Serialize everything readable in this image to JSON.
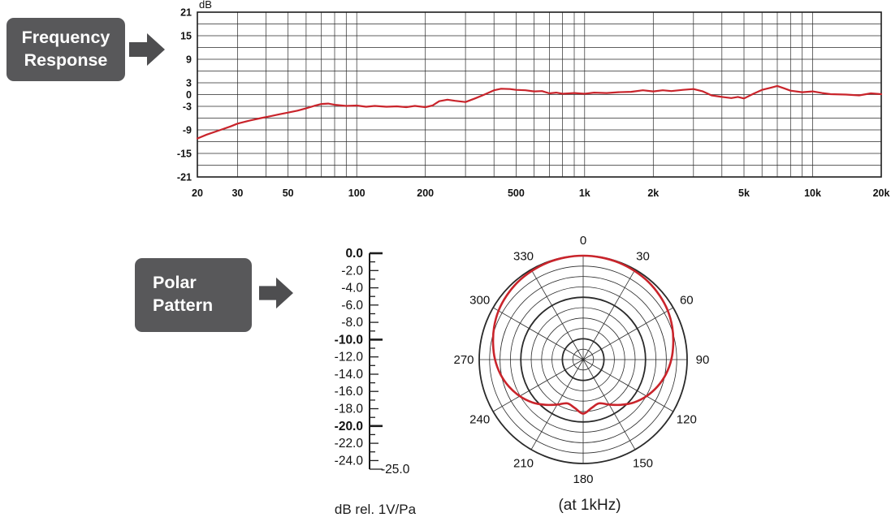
{
  "frequency_response": {
    "label_lines": [
      "Frequency",
      "Response"
    ],
    "box_color": "#58585a",
    "arrow_color": "#4e4e50"
  },
  "polar_pattern": {
    "label_lines": [
      "Polar",
      "Pattern"
    ],
    "box_color": "#58585a",
    "arrow_color": "#4e4e50",
    "scale_caption": "dB rel. 1V/Pa",
    "chart_caption": "(at 1kHz)"
  },
  "chart_data": [
    {
      "type": "line",
      "name": "frequency-response",
      "y_axis_label": "dB",
      "x_scale": "log",
      "x_range": [
        20,
        20000
      ],
      "y_range": [
        -21,
        21
      ],
      "y_grid_step_db": 3,
      "grid_color": "#2a2a2a",
      "line_color": "#c9242b",
      "x_gridlines": [
        20,
        30,
        40,
        50,
        60,
        70,
        80,
        90,
        100,
        200,
        300,
        400,
        500,
        600,
        700,
        800,
        900,
        1000,
        2000,
        3000,
        4000,
        5000,
        6000,
        7000,
        8000,
        9000,
        10000,
        20000
      ],
      "x_ticks": [
        {
          "value": 20,
          "label": "20"
        },
        {
          "value": 30,
          "label": "30"
        },
        {
          "value": 50,
          "label": "50"
        },
        {
          "value": 100,
          "label": "100"
        },
        {
          "value": 200,
          "label": "200"
        },
        {
          "value": 500,
          "label": "500"
        },
        {
          "value": 1000,
          "label": "1k"
        },
        {
          "value": 2000,
          "label": "2k"
        },
        {
          "value": 5000,
          "label": "5k"
        },
        {
          "value": 10000,
          "label": "10k"
        },
        {
          "value": 20000,
          "label": "20k"
        }
      ],
      "y_ticks": [
        {
          "value": 21,
          "label": "21"
        },
        {
          "value": 15,
          "label": "15"
        },
        {
          "value": 9,
          "label": "9"
        },
        {
          "value": 3,
          "label": "3"
        },
        {
          "value": 0,
          "label": "0"
        },
        {
          "value": -3,
          "label": "-3"
        },
        {
          "value": -9,
          "label": "-9"
        },
        {
          "value": -15,
          "label": "-15"
        },
        {
          "value": -21,
          "label": "-21"
        }
      ],
      "points": [
        [
          20,
          -11.2
        ],
        [
          22,
          -10.2
        ],
        [
          25,
          -9.1
        ],
        [
          28,
          -8.1
        ],
        [
          30,
          -7.4
        ],
        [
          34,
          -6.6
        ],
        [
          38,
          -6.0
        ],
        [
          42,
          -5.5
        ],
        [
          46,
          -5.0
        ],
        [
          50,
          -4.6
        ],
        [
          55,
          -4.1
        ],
        [
          60,
          -3.5
        ],
        [
          65,
          -2.9
        ],
        [
          70,
          -2.4
        ],
        [
          75,
          -2.3
        ],
        [
          80,
          -2.6
        ],
        [
          90,
          -2.9
        ],
        [
          100,
          -2.8
        ],
        [
          110,
          -3.1
        ],
        [
          120,
          -2.9
        ],
        [
          135,
          -3.1
        ],
        [
          150,
          -3.0
        ],
        [
          165,
          -3.2
        ],
        [
          180,
          -2.9
        ],
        [
          200,
          -3.2
        ],
        [
          215,
          -2.8
        ],
        [
          230,
          -1.7
        ],
        [
          250,
          -1.3
        ],
        [
          270,
          -1.6
        ],
        [
          300,
          -1.9
        ],
        [
          330,
          -1.0
        ],
        [
          360,
          -0.1
        ],
        [
          400,
          1.1
        ],
        [
          430,
          1.5
        ],
        [
          470,
          1.4
        ],
        [
          500,
          1.2
        ],
        [
          550,
          1.1
        ],
        [
          600,
          0.8
        ],
        [
          650,
          0.9
        ],
        [
          700,
          0.3
        ],
        [
          750,
          0.5
        ],
        [
          800,
          0.2
        ],
        [
          900,
          0.4
        ],
        [
          1000,
          0.2
        ],
        [
          1100,
          0.5
        ],
        [
          1250,
          0.4
        ],
        [
          1400,
          0.6
        ],
        [
          1600,
          0.7
        ],
        [
          1800,
          1.1
        ],
        [
          2000,
          0.8
        ],
        [
          2200,
          1.1
        ],
        [
          2400,
          0.9
        ],
        [
          2700,
          1.2
        ],
        [
          3000,
          1.4
        ],
        [
          3300,
          0.8
        ],
        [
          3600,
          -0.2
        ],
        [
          4000,
          -0.6
        ],
        [
          4400,
          -0.9
        ],
        [
          4700,
          -0.6
        ],
        [
          5000,
          -1.0
        ],
        [
          5500,
          0.2
        ],
        [
          6000,
          1.2
        ],
        [
          6500,
          1.7
        ],
        [
          7000,
          2.2
        ],
        [
          7500,
          1.6
        ],
        [
          8000,
          1.0
        ],
        [
          9000,
          0.6
        ],
        [
          10000,
          0.8
        ],
        [
          11000,
          0.4
        ],
        [
          12000,
          0.1
        ],
        [
          14000,
          0.0
        ],
        [
          16000,
          -0.2
        ],
        [
          18000,
          0.3
        ],
        [
          20000,
          0.1
        ]
      ]
    },
    {
      "type": "polar",
      "name": "polar-pattern",
      "r_range_db": [
        -25,
        0
      ],
      "ring_step_db": 2.5,
      "bold_ring_db": [
        0,
        -10,
        -20
      ],
      "angle_step_deg": 30,
      "angle_labels": [
        "0",
        "30",
        "60",
        "90",
        "120",
        "150",
        "180",
        "210",
        "240",
        "270",
        "300",
        "330"
      ],
      "grid_color": "#2a2a2a",
      "line_color": "#c9242b",
      "points_deg_db": [
        [
          0,
          0
        ],
        [
          10,
          -0.05
        ],
        [
          20,
          -0.15
        ],
        [
          30,
          -0.35
        ],
        [
          40,
          -0.6
        ],
        [
          50,
          -1.0
        ],
        [
          60,
          -1.5
        ],
        [
          70,
          -2.2
        ],
        [
          80,
          -3.0
        ],
        [
          90,
          -3.8
        ],
        [
          100,
          -4.8
        ],
        [
          110,
          -6.0
        ],
        [
          120,
          -7.4
        ],
        [
          130,
          -9.0
        ],
        [
          140,
          -10.8
        ],
        [
          150,
          -12.5
        ],
        [
          160,
          -13.8
        ],
        [
          170,
          -13.2
        ],
        [
          180,
          -12.0
        ],
        [
          190,
          -13.2
        ],
        [
          200,
          -13.8
        ],
        [
          210,
          -12.5
        ],
        [
          220,
          -10.8
        ],
        [
          230,
          -9.0
        ],
        [
          240,
          -7.4
        ],
        [
          250,
          -6.0
        ],
        [
          260,
          -4.8
        ],
        [
          270,
          -3.8
        ],
        [
          280,
          -3.0
        ],
        [
          290,
          -2.2
        ],
        [
          300,
          -1.5
        ],
        [
          310,
          -1.0
        ],
        [
          320,
          -0.6
        ],
        [
          330,
          -0.35
        ],
        [
          340,
          -0.15
        ],
        [
          350,
          -0.05
        ]
      ],
      "scale": {
        "tick_labels": [
          "0.0",
          "-2.0",
          "-4.0",
          "-6.0",
          "-8.0",
          "-10.0",
          "-12.0",
          "-14.0",
          "-16.0",
          "-18.0",
          "-20.0",
          "-22.0",
          "-24.0"
        ],
        "bold_labels": [
          "0.0",
          "-10.0",
          "-20.0"
        ],
        "end_label": "-25.0",
        "range_db": [
          0,
          -25
        ]
      }
    }
  ]
}
